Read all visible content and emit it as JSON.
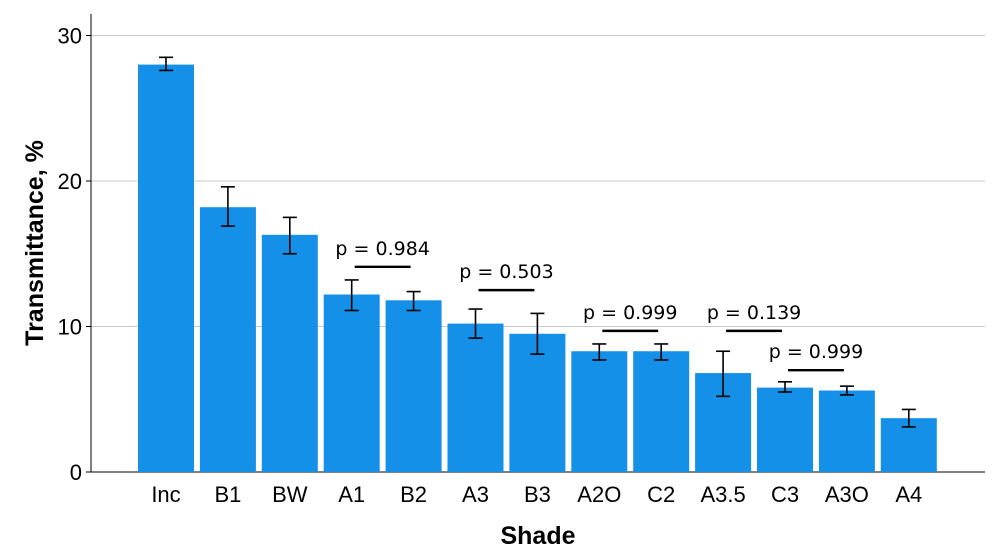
{
  "chart_data": {
    "type": "bar",
    "title": "",
    "xlabel": "Shade",
    "ylabel": "Transmittance, %",
    "ylim": [
      0,
      30
    ],
    "yticks": [
      0,
      10,
      20,
      30
    ],
    "grid": true,
    "bar_color": "#1590E8",
    "categories": [
      "Inc",
      "B1",
      "BW",
      "A1",
      "B2",
      "A3",
      "B3",
      "A2O",
      "C2",
      "A3.5",
      "C3",
      "A3O",
      "A4"
    ],
    "values": [
      28.0,
      18.2,
      16.3,
      12.2,
      11.8,
      10.2,
      9.5,
      8.3,
      8.3,
      6.8,
      5.8,
      5.6,
      3.7
    ],
    "error_low": [
      27.6,
      16.9,
      15.0,
      11.1,
      11.1,
      9.2,
      8.1,
      7.7,
      7.7,
      5.2,
      5.5,
      5.3,
      3.1
    ],
    "error_high": [
      28.5,
      19.6,
      17.5,
      13.2,
      12.4,
      11.2,
      10.9,
      8.8,
      8.8,
      8.3,
      6.2,
      5.9,
      4.3
    ],
    "annotations": [
      {
        "text": "p = 0.984",
        "from": 3,
        "to": 4,
        "y": 14.1
      },
      {
        "text": "p = 0.503",
        "from": 5,
        "to": 6,
        "y": 12.5
      },
      {
        "text": "p = 0.999",
        "from": 7,
        "to": 8,
        "y": 9.7
      },
      {
        "text": "p = 0.139",
        "from": 9,
        "to": 10,
        "y": 9.7
      },
      {
        "text": "p = 0.999",
        "from": 10,
        "to": 11,
        "y": 7.0
      }
    ]
  }
}
